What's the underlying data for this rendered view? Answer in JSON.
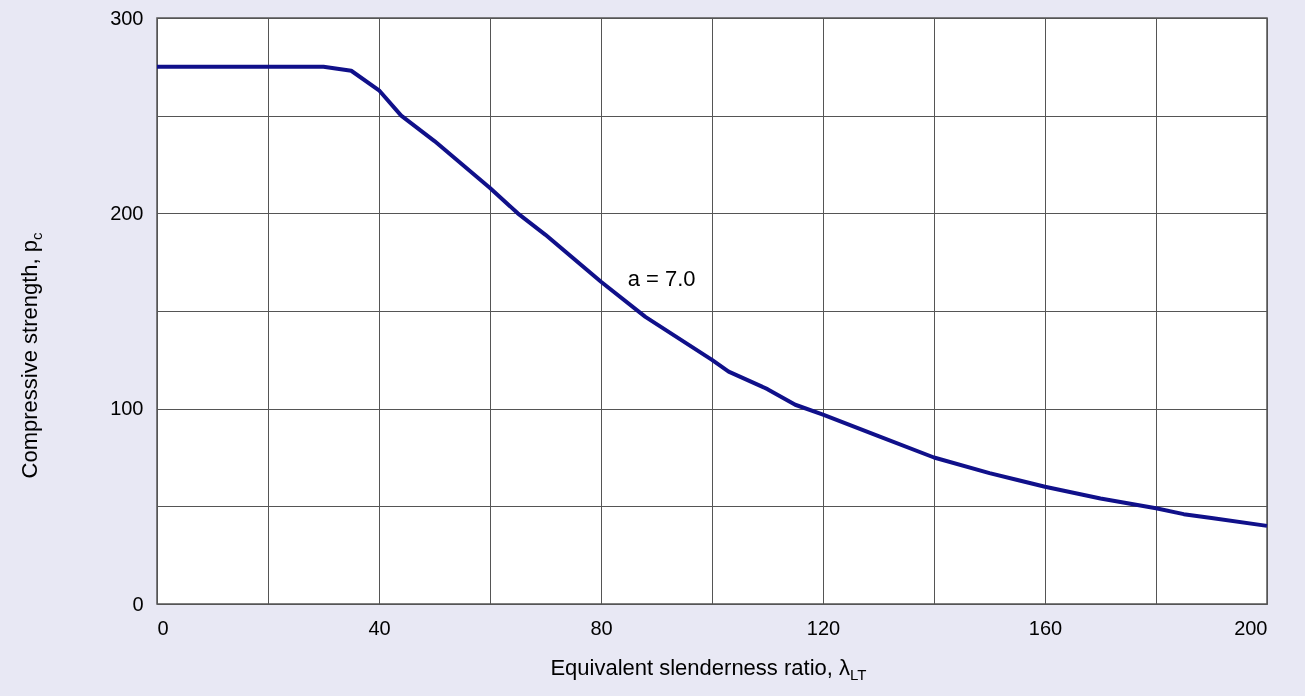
{
  "chart_data": {
    "type": "line",
    "xlabel": "Equivalent slenderness ratio, λ$_{LT}$",
    "ylabel": "Compressive strength, p$_{c}$",
    "x": [
      0,
      30,
      35,
      40,
      44,
      50,
      55,
      60,
      65,
      70,
      80,
      88,
      100,
      103,
      110,
      115,
      120,
      130,
      140,
      150,
      160,
      170,
      180,
      185,
      190,
      200
    ],
    "series": [
      {
        "color": "#10108a",
        "values": [
          275,
          275,
          273,
          263,
          250,
          237,
          225,
          213,
          200,
          189,
          165,
          147,
          125,
          119,
          110,
          102,
          97,
          86,
          75,
          67,
          60,
          54,
          49,
          46,
          44,
          40
        ]
      }
    ],
    "xlim": [
      0,
      200
    ],
    "ylim": [
      0,
      300
    ],
    "xticks": [
      0,
      {
        "value": 20,
        "label": null
      },
      40,
      {
        "value": 60,
        "label": null
      },
      80,
      {
        "value": 100,
        "label": null
      },
      120,
      {
        "value": 140,
        "label": null
      },
      160,
      {
        "value": 180,
        "label": null
      },
      200
    ],
    "yticks": [
      0,
      {
        "value": 50,
        "label": null
      },
      100,
      {
        "value": 150,
        "label": null
      },
      200,
      {
        "value": 250,
        "label": null
      },
      300
    ],
    "grid": true,
    "marker": "none",
    "line_style": "solid",
    "annotations": [
      {
        "text": "a = 7.0",
        "x": 83,
        "y": 157
      }
    ]
  }
}
